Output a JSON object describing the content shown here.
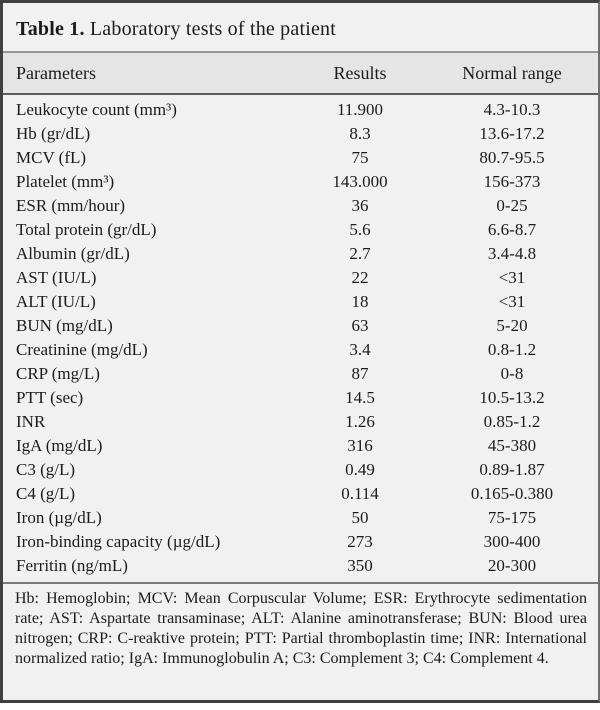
{
  "caption": {
    "label": "Table 1.",
    "text": "Laboratory tests of the patient"
  },
  "table": {
    "columns": [
      "Parameters",
      "Results",
      "Normal range"
    ],
    "rows": [
      {
        "param": "Leukocyte count (mm³)",
        "result": "11.900",
        "range": "4.3-10.3"
      },
      {
        "param": "Hb (gr/dL)",
        "result": "8.3",
        "range": "13.6-17.2"
      },
      {
        "param": "MCV (fL)",
        "result": "75",
        "range": "80.7-95.5"
      },
      {
        "param": "Platelet (mm³)",
        "result": "143.000",
        "range": "156-373"
      },
      {
        "param": "ESR (mm/hour)",
        "result": "36",
        "range": "0-25"
      },
      {
        "param": "Total protein (gr/dL)",
        "result": "5.6",
        "range": "6.6-8.7"
      },
      {
        "param": "Albumin (gr/dL)",
        "result": "2.7",
        "range": "3.4-4.8"
      },
      {
        "param": "AST (IU/L)",
        "result": "22",
        "range": "<31"
      },
      {
        "param": "ALT (IU/L)",
        "result": "18",
        "range": "<31"
      },
      {
        "param": "BUN (mg/dL)",
        "result": "63",
        "range": "5-20"
      },
      {
        "param": "Creatinine (mg/dL)",
        "result": "3.4",
        "range": "0.8-1.2"
      },
      {
        "param": "CRP (mg/L)",
        "result": "87",
        "range": "0-8"
      },
      {
        "param": "PTT (sec)",
        "result": "14.5",
        "range": "10.5-13.2"
      },
      {
        "param": "INR",
        "result": "1.26",
        "range": "0.85-1.2"
      },
      {
        "param": "IgA (mg/dL)",
        "result": "316",
        "range": "45-380"
      },
      {
        "param": "C3 (g/L)",
        "result": "0.49",
        "range": "0.89-1.87"
      },
      {
        "param": "C4 (g/L)",
        "result": "0.114",
        "range": "0.165-0.380"
      },
      {
        "param": "Iron (µg/dL)",
        "result": "50",
        "range": "75-175"
      },
      {
        "param": "Iron-binding capacity (µg/dL)",
        "result": "273",
        "range": "300-400"
      },
      {
        "param": "Ferritin (ng/mL)",
        "result": "350",
        "range": "20-300"
      }
    ]
  },
  "footnote": "Hb: Hemoglobin; MCV: Mean Corpuscular Volume; ESR: Erythrocyte sedimentation rate; AST: Aspartate transaminase; ALT: Alanine aminotransferase; BUN: Blood urea nitrogen; CRP: C-reaktive protein; PTT: Partial thromboplastin time; INR: International normalized ratio; IgA: Immunoglobulin A; C3: Complement 3; C4: Complement 4.",
  "colors": {
    "background": "#f1f1f2",
    "header_band": "#e5e5e6",
    "frame_border": "#404040",
    "rule_light": "#979797",
    "rule_dark": "#5c5c5c",
    "text": "#1b1b1b"
  }
}
